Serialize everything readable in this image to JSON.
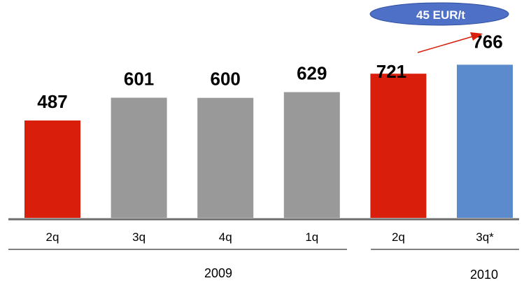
{
  "chart_data": {
    "type": "bar",
    "categories": [
      "2q",
      "3q",
      "4q",
      "1q",
      "2q",
      "3q*"
    ],
    "values": [
      487,
      601,
      600,
      629,
      721,
      766
    ],
    "bar_colors": [
      "#d91e0b",
      "#999999",
      "#999999",
      "#999999",
      "#d91e0b",
      "#5b8bcc"
    ],
    "groups": [
      {
        "label": "2009",
        "from": 0,
        "to": 3
      },
      {
        "label": "2010",
        "from": 4,
        "to": 5
      }
    ],
    "annotation": {
      "text": "45 EUR/t",
      "from_index": 4,
      "to_index": 5,
      "badge_color": "#4f70c7",
      "arrow_color": "#d91e0b"
    },
    "title": "",
    "xlabel": "",
    "ylabel": ""
  }
}
